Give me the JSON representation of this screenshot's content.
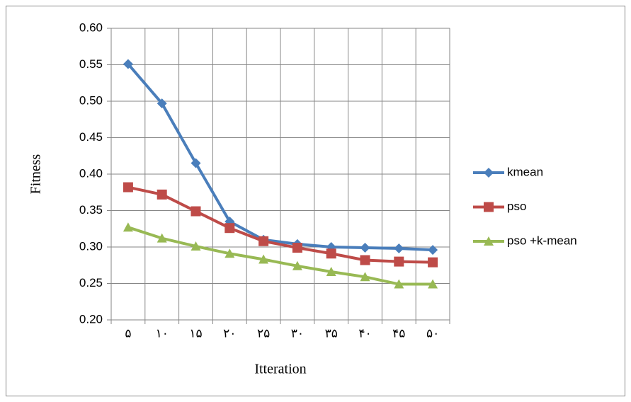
{
  "chart_data": {
    "type": "line",
    "x_label": "Itteration",
    "y_label": "Fitness",
    "categories": [
      "۵",
      "۱۰",
      "۱۵",
      "۲۰",
      "۲۵",
      "۳۰",
      "۳۵",
      "۴۰",
      "۴۵",
      "۵۰"
    ],
    "series": [
      {
        "name": "kmean",
        "color": "#4a7ebb",
        "marker": "diamond",
        "values": [
          0.551,
          0.497,
          0.415,
          0.335,
          0.31,
          0.304,
          0.3,
          0.299,
          0.298,
          0.296
        ]
      },
      {
        "name": "pso",
        "color": "#be4b48",
        "marker": "square",
        "values": [
          0.382,
          0.372,
          0.349,
          0.326,
          0.308,
          0.299,
          0.291,
          0.282,
          0.28,
          0.279
        ]
      },
      {
        "name": "pso +k-mean",
        "color": "#98b954",
        "marker": "triangle",
        "values": [
          0.327,
          0.312,
          0.301,
          0.291,
          0.283,
          0.274,
          0.266,
          0.259,
          0.249,
          0.249
        ]
      }
    ],
    "ylim": [
      0.2,
      0.6
    ],
    "yticks": [
      {
        "value": 0.2,
        "label": "0.20"
      },
      0.25,
      {
        "value": 0.3,
        "label": "0.30"
      },
      0.35,
      {
        "value": 0.4,
        "label": "0.40"
      },
      0.45,
      {
        "value": 0.5,
        "label": "0.50"
      },
      0.55,
      {
        "value": 0.6,
        "label": "0.60"
      }
    ],
    "grid": true,
    "legend": "right"
  }
}
